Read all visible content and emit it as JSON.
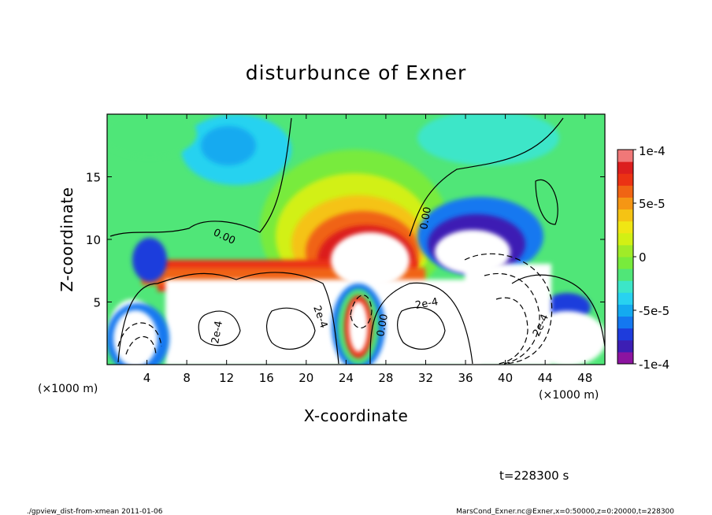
{
  "chart_data": {
    "type": "heatmap",
    "title": "disturbunce of Exner",
    "xlabel": "X-coordinate",
    "ylabel": "Z-coordinate",
    "x_unit": "(×1000 m)",
    "y_unit": "(×1000 m)",
    "xlim": [
      0,
      50
    ],
    "ylim": [
      0,
      20
    ],
    "x_ticks": [
      "4",
      "8",
      "12",
      "16",
      "20",
      "24",
      "28",
      "32",
      "36",
      "40",
      "44",
      "48"
    ],
    "y_ticks": [
      "5",
      "10",
      "15"
    ],
    "colorbar": {
      "range": [
        -0.0001,
        0.0001
      ],
      "tick_labels": [
        "1e-4",
        "5e-5",
        "0",
        "-5e-5",
        "-1e-4"
      ],
      "colors": [
        "#8c14a0",
        "#3c1eb4",
        "#1e3cdc",
        "#1478f0",
        "#14aaf0",
        "#28d2f0",
        "#3ce6c8",
        "#50e678",
        "#78eb3c",
        "#a0eb28",
        "#d2f014",
        "#f0e614",
        "#f5c314",
        "#f59614",
        "#f06414",
        "#eb3214",
        "#dc1e1e",
        "#f07878"
      ]
    },
    "contour_labels": [
      "0.00",
      "0.00",
      "0.00",
      "2e-4",
      "2e-4",
      "2e-4",
      "2e-4"
    ],
    "annotation": "t=228300 s"
  },
  "footer": {
    "left": "./gpview_dist-from-xmean  2011-01-06",
    "right": "MarsCond_Exner.nc@Exner,x=0:50000,z=0:20000,t=228300"
  }
}
